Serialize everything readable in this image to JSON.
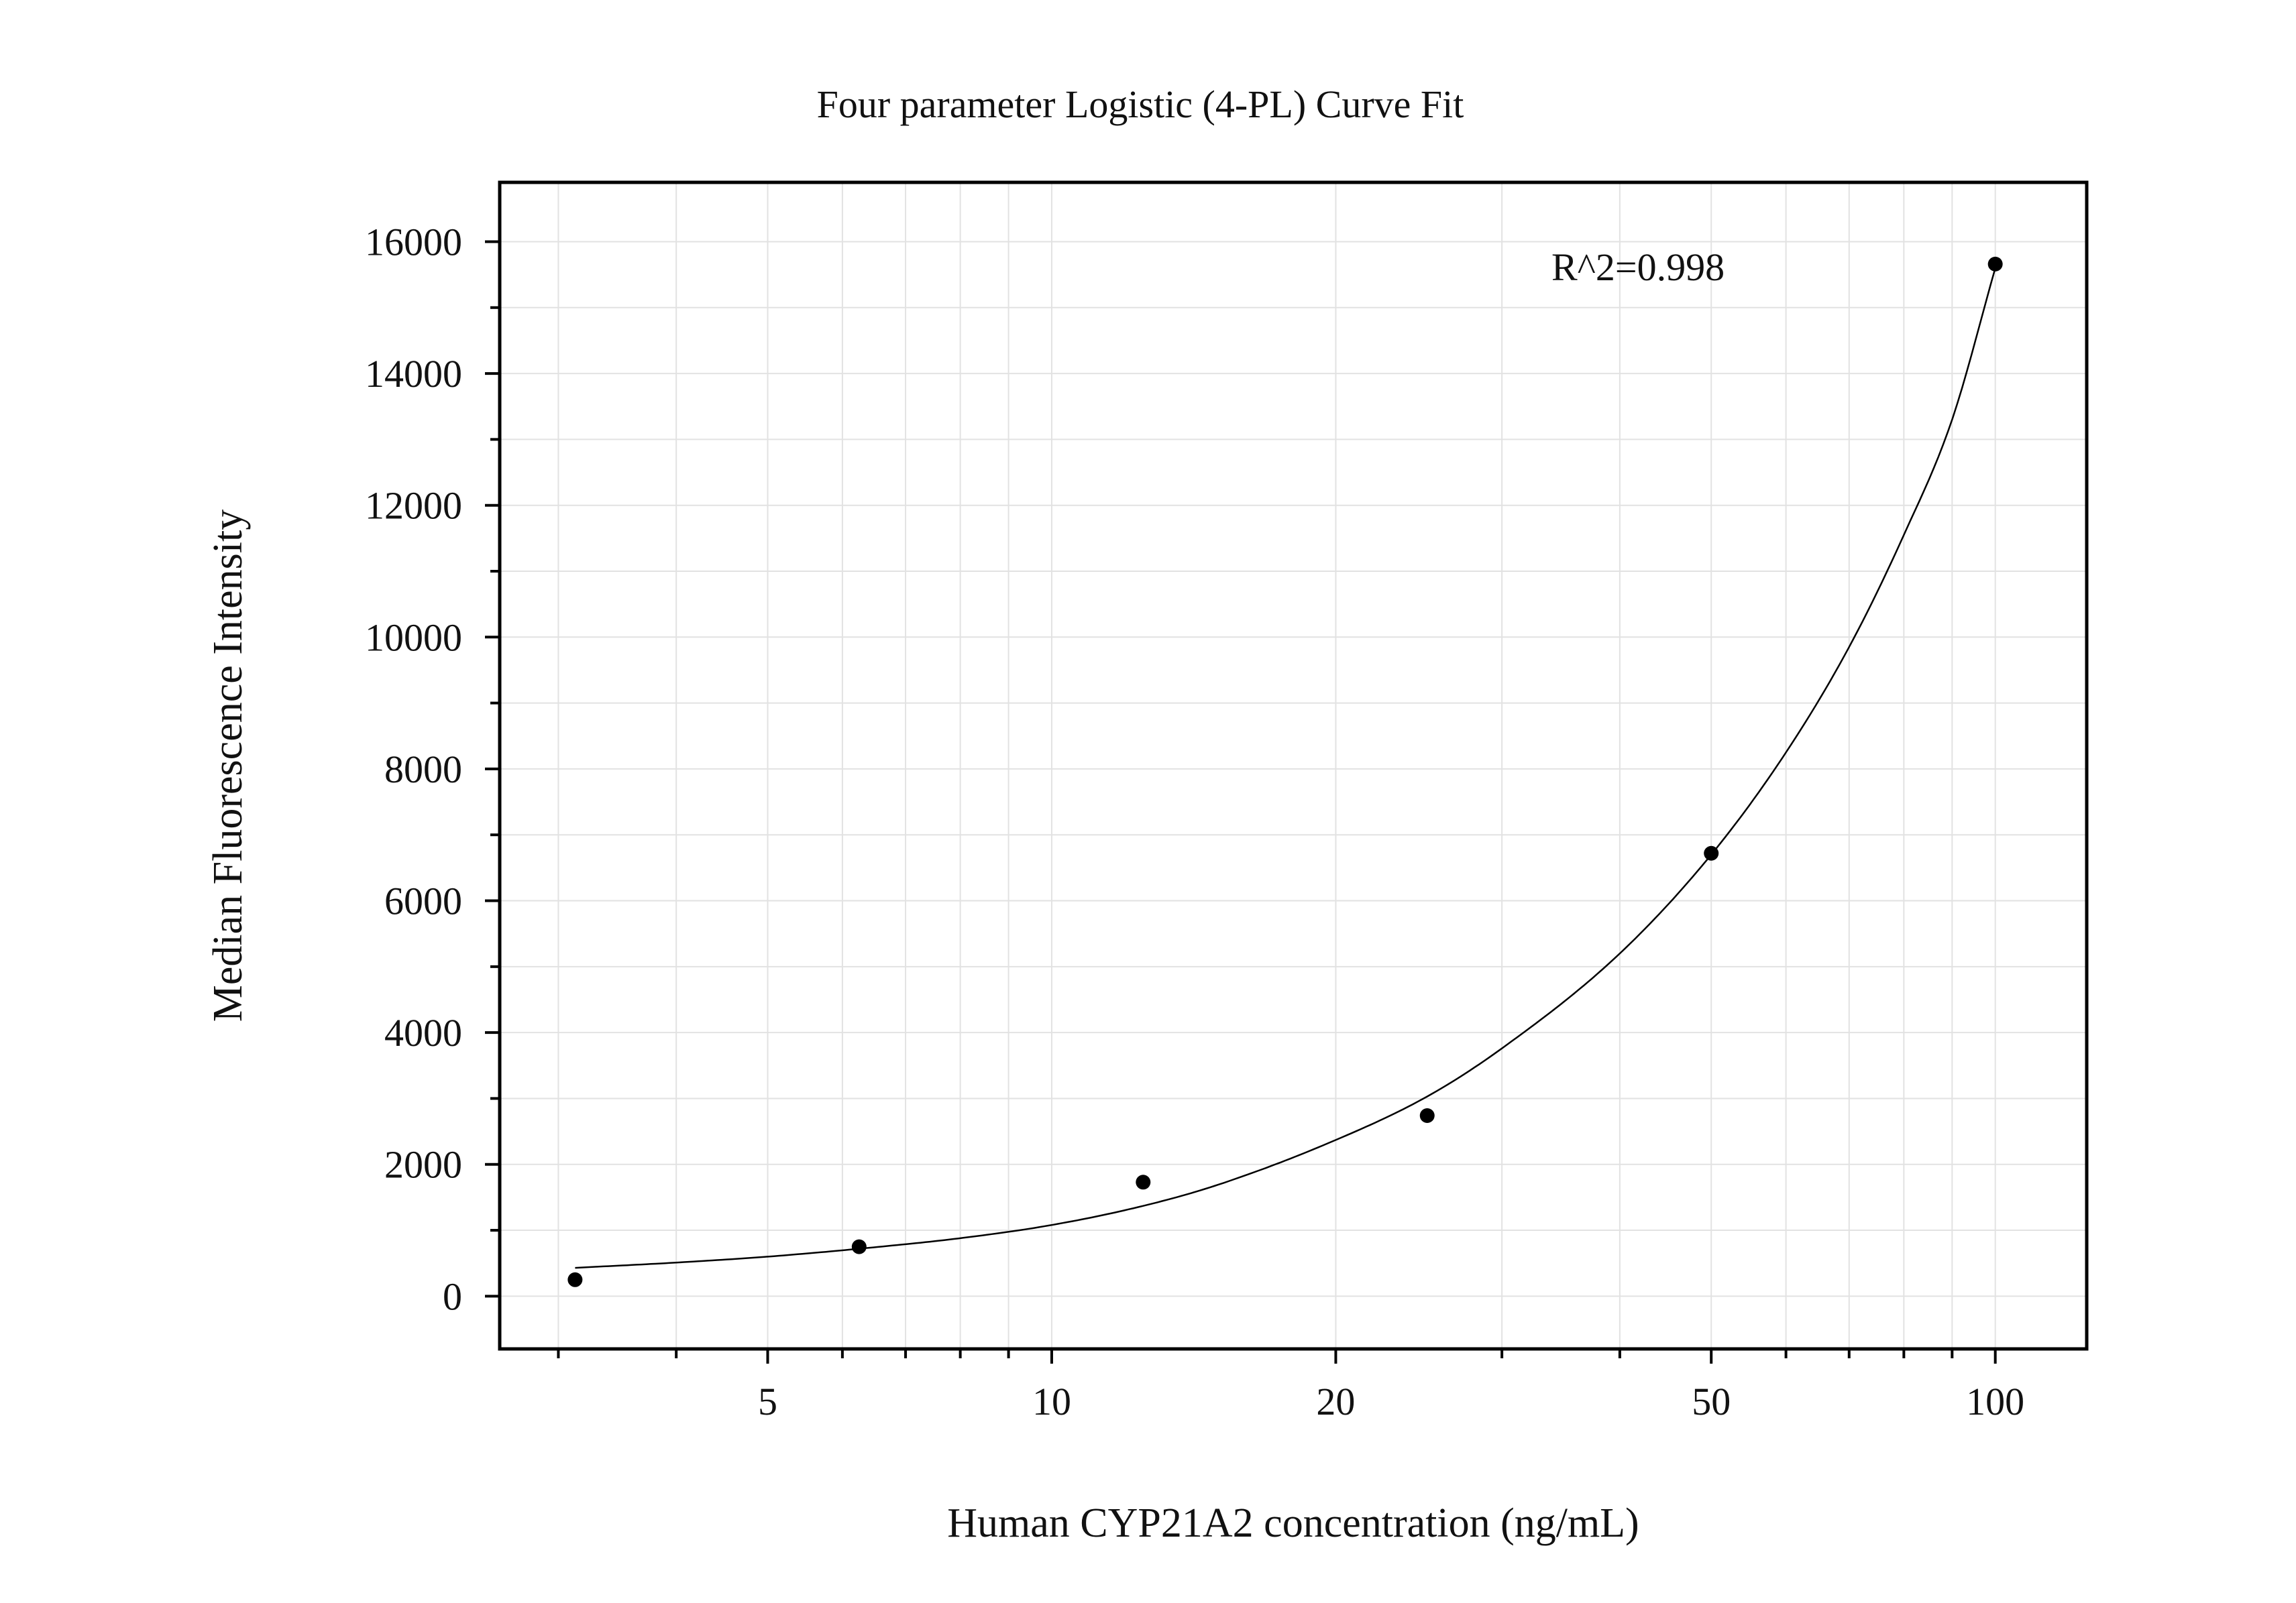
{
  "chart_data": {
    "type": "scatter",
    "title": "Four parameter Logistic (4-PL) Curve Fit",
    "xlabel": "Human CYP21A2 concentration (ng/mL)",
    "ylabel": "Median Fluorescence Intensity",
    "x_scale": "log",
    "xlim": [
      2.6,
      125
    ],
    "ylim": [
      -800,
      16900
    ],
    "x_ticks": [
      5,
      10,
      20,
      50,
      100
    ],
    "x_tick_labels": [
      "5",
      "10",
      "20",
      "50",
      "100"
    ],
    "y_ticks": [
      0,
      2000,
      4000,
      6000,
      8000,
      10000,
      12000,
      14000,
      16000
    ],
    "y_tick_labels": [
      "0",
      "2000",
      "4000",
      "6000",
      "8000",
      "10000",
      "12000",
      "14000",
      "16000"
    ],
    "grid": true,
    "annotation": "R^2=0.998",
    "series": [
      {
        "points": [
          {
            "x": 3.125,
            "y": 250
          },
          {
            "x": 6.25,
            "y": 750
          },
          {
            "x": 12.5,
            "y": 1730
          },
          {
            "x": 25,
            "y": 2740
          },
          {
            "x": 50,
            "y": 6720
          },
          {
            "x": 100,
            "y": 15660
          }
        ]
      }
    ],
    "fit_curve": {
      "model": "4-PL",
      "x": [
        3.125,
        4,
        5,
        6.25,
        8,
        10,
        12.5,
        15,
        20,
        25,
        30,
        40,
        50,
        60,
        70,
        80,
        90,
        100
      ],
      "y": [
        430,
        510,
        600,
        720,
        880,
        1080,
        1370,
        1690,
        2370,
        3030,
        3760,
        5200,
        6700,
        8250,
        9850,
        11550,
        13300,
        15600
      ]
    },
    "colors": {
      "points": "#000000",
      "curve": "#000000",
      "grid": "#e2e2e2",
      "frame": "#000000"
    }
  }
}
